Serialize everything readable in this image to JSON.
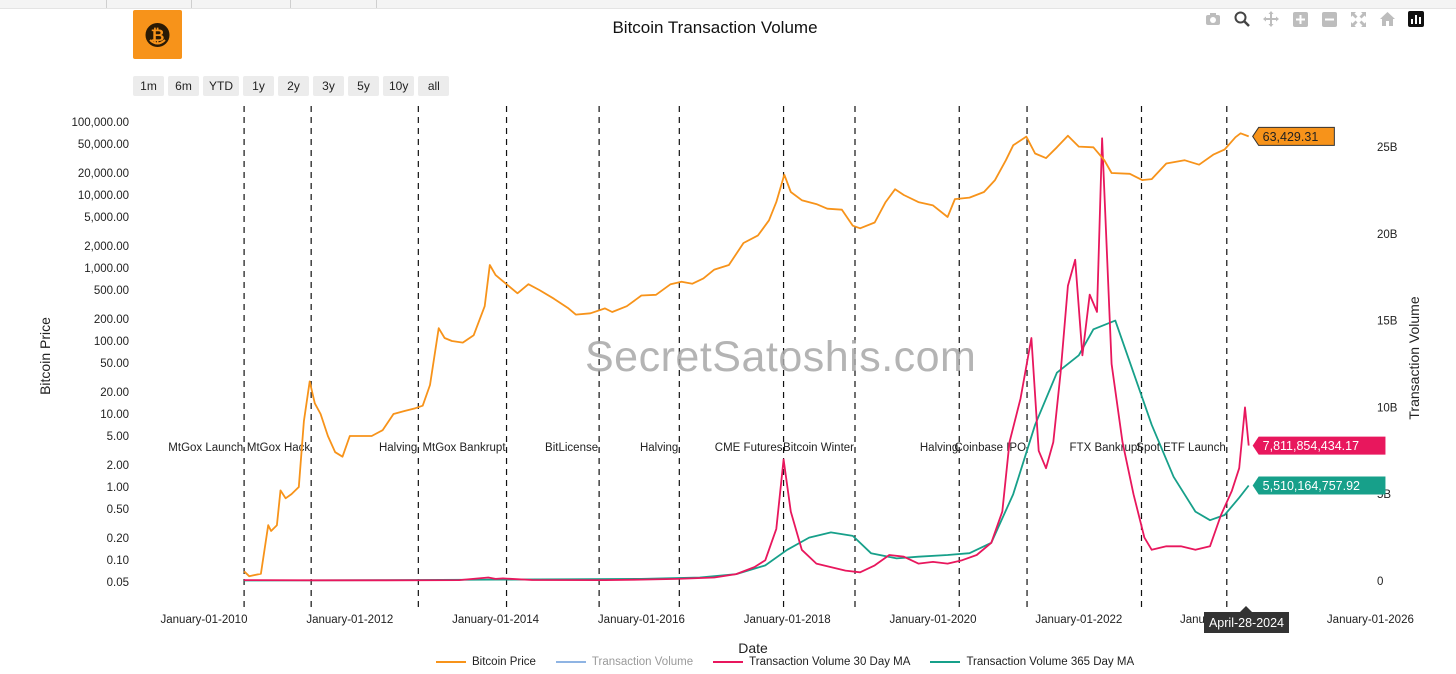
{
  "header": {
    "title": "Bitcoin Transaction Volume"
  },
  "toolbar": {
    "icons": [
      "camera-icon",
      "zoom-icon",
      "pan-icon",
      "zoom-in-icon",
      "zoom-out-icon",
      "autoscale-icon",
      "home-icon",
      "bar-chart-icon"
    ]
  },
  "range_selector": {
    "buttons": [
      "1m",
      "6m",
      "YTD",
      "1y",
      "2y",
      "3y",
      "5y",
      "10y",
      "all"
    ]
  },
  "watermark": "SecretSatoshis.com",
  "legend": {
    "items": [
      {
        "label": "Bitcoin Price",
        "color": "#F7931A"
      },
      {
        "label": "Transaction Volume",
        "color": "#8fb4e3"
      },
      {
        "label": "Transaction Volume 30 Day MA",
        "color": "#E8175D"
      },
      {
        "label": "Transaction Volume 365 Day MA",
        "color": "#17A08A"
      }
    ]
  },
  "chart_data": {
    "type": "line",
    "title": "Bitcoin Transaction Volume",
    "xlabel": "Date",
    "ylabel_left": "Bitcoin Price",
    "ylabel_right": "Transaction Volume",
    "x_ticks": [
      "January-01-2010",
      "January-01-2012",
      "January-01-2014",
      "January-01-2016",
      "January-01-2018",
      "January-01-2020",
      "January-01-2022",
      "January-01-2026"
    ],
    "x_tick_years": [
      2010,
      2012,
      2014,
      2016,
      2018,
      2020,
      2022,
      2026
    ],
    "x_tick_partial": "Janu",
    "y_left_scale": "log",
    "y_left_ticks": [
      "100,000.00",
      "50,000.00",
      "20,000.00",
      "10,000.00",
      "5,000.00",
      "2,000.00",
      "1,000.00",
      "500.00",
      "200.00",
      "100.00",
      "50.00",
      "20.00",
      "10.00",
      "5.00",
      "2.00",
      "1.00",
      "0.50",
      "0.20",
      "0.10",
      "0.05"
    ],
    "y_left_tick_values": [
      100000,
      50000,
      20000,
      10000,
      5000,
      2000,
      1000,
      500,
      200,
      100,
      50,
      20,
      10,
      5,
      2,
      1,
      0.5,
      0.2,
      0.1,
      0.05
    ],
    "y_right_ticks": [
      "25B",
      "20B",
      "15B",
      "10B",
      "5B",
      "0"
    ],
    "y_right_tick_values": [
      25,
      20,
      15,
      10,
      5,
      0
    ],
    "events": [
      {
        "label": "MtGox Launch",
        "year": 2010.55
      },
      {
        "label": "MtGox Hack",
        "year": 2011.47
      },
      {
        "label": "Halving",
        "year": 2012.94
      },
      {
        "label": "MtGox Bankrupt",
        "year": 2014.15
      },
      {
        "label": "BitLicense",
        "year": 2015.42
      },
      {
        "label": "Halving",
        "year": 2016.52
      },
      {
        "label": "CME Futures",
        "year": 2017.95
      },
      {
        "label": "Bitcoin Winter",
        "year": 2018.93
      },
      {
        "label": "Halving",
        "year": 2020.36
      },
      {
        "label": "Coinbase IPO",
        "year": 2021.29
      },
      {
        "label": "FTX Bankrupt",
        "year": 2022.86
      },
      {
        "label": "Spot ETF Launch",
        "year": 2024.03
      }
    ],
    "hover_date": "April-28-2024",
    "grid": false,
    "legend_position": "bottom",
    "series": [
      {
        "name": "Bitcoin Price",
        "axis": "left",
        "color": "#F7931A",
        "last_label": "63,429.31",
        "points": [
          [
            2010.55,
            0.07
          ],
          [
            2010.62,
            0.06
          ],
          [
            2010.78,
            0.065
          ],
          [
            2010.88,
            0.3
          ],
          [
            2010.92,
            0.25
          ],
          [
            2011.0,
            0.3
          ],
          [
            2011.05,
            0.9
          ],
          [
            2011.12,
            0.7
          ],
          [
            2011.2,
            0.8
          ],
          [
            2011.3,
            1.0
          ],
          [
            2011.37,
            8
          ],
          [
            2011.45,
            28
          ],
          [
            2011.52,
            14
          ],
          [
            2011.6,
            10
          ],
          [
            2011.7,
            5
          ],
          [
            2011.8,
            3
          ],
          [
            2011.9,
            2.6
          ],
          [
            2012.0,
            5
          ],
          [
            2012.15,
            5
          ],
          [
            2012.3,
            5
          ],
          [
            2012.45,
            6
          ],
          [
            2012.6,
            10
          ],
          [
            2012.75,
            11
          ],
          [
            2012.9,
            12
          ],
          [
            2013.0,
            13
          ],
          [
            2013.1,
            25
          ],
          [
            2013.22,
            150
          ],
          [
            2013.3,
            110
          ],
          [
            2013.4,
            100
          ],
          [
            2013.55,
            95
          ],
          [
            2013.7,
            120
          ],
          [
            2013.85,
            300
          ],
          [
            2013.92,
            1100
          ],
          [
            2014.0,
            800
          ],
          [
            2014.15,
            600
          ],
          [
            2014.3,
            450
          ],
          [
            2014.45,
            600
          ],
          [
            2014.6,
            500
          ],
          [
            2014.8,
            380
          ],
          [
            2015.0,
            280
          ],
          [
            2015.1,
            230
          ],
          [
            2015.3,
            240
          ],
          [
            2015.5,
            280
          ],
          [
            2015.6,
            250
          ],
          [
            2015.8,
            300
          ],
          [
            2016.0,
            420
          ],
          [
            2016.2,
            430
          ],
          [
            2016.4,
            600
          ],
          [
            2016.55,
            650
          ],
          [
            2016.7,
            610
          ],
          [
            2016.85,
            720
          ],
          [
            2017.0,
            950
          ],
          [
            2017.2,
            1100
          ],
          [
            2017.4,
            2200
          ],
          [
            2017.6,
            2800
          ],
          [
            2017.75,
            4500
          ],
          [
            2017.85,
            8000
          ],
          [
            2017.96,
            19000
          ],
          [
            2018.05,
            11000
          ],
          [
            2018.2,
            8500
          ],
          [
            2018.4,
            7500
          ],
          [
            2018.55,
            6500
          ],
          [
            2018.75,
            6300
          ],
          [
            2018.9,
            3800
          ],
          [
            2019.0,
            3500
          ],
          [
            2019.2,
            4200
          ],
          [
            2019.35,
            8000
          ],
          [
            2019.48,
            12000
          ],
          [
            2019.6,
            10000
          ],
          [
            2019.8,
            8000
          ],
          [
            2020.0,
            7200
          ],
          [
            2020.2,
            5000
          ],
          [
            2020.3,
            8800
          ],
          [
            2020.5,
            9200
          ],
          [
            2020.7,
            11000
          ],
          [
            2020.85,
            16000
          ],
          [
            2021.0,
            30000
          ],
          [
            2021.1,
            48000
          ],
          [
            2021.28,
            63000
          ],
          [
            2021.4,
            37000
          ],
          [
            2021.55,
            32000
          ],
          [
            2021.7,
            45000
          ],
          [
            2021.85,
            65000
          ],
          [
            2022.0,
            46000
          ],
          [
            2022.2,
            45000
          ],
          [
            2022.35,
            30000
          ],
          [
            2022.45,
            20000
          ],
          [
            2022.7,
            19500
          ],
          [
            2022.87,
            16000
          ],
          [
            2023.0,
            16500
          ],
          [
            2023.2,
            27000
          ],
          [
            2023.45,
            30000
          ],
          [
            2023.65,
            26000
          ],
          [
            2023.85,
            36000
          ],
          [
            2024.0,
            42000
          ],
          [
            2024.15,
            62000
          ],
          [
            2024.22,
            70000
          ],
          [
            2024.33,
            63429
          ]
        ]
      },
      {
        "name": "Transaction Volume 30 Day MA",
        "axis": "right",
        "color": "#E8175D",
        "last_label": "7,811,854,434.17",
        "points": [
          [
            2010.55,
            0.05
          ],
          [
            2011.5,
            0.04
          ],
          [
            2012.5,
            0.04
          ],
          [
            2013.5,
            0.05
          ],
          [
            2013.9,
            0.2
          ],
          [
            2014.0,
            0.12
          ],
          [
            2014.1,
            0.15
          ],
          [
            2014.5,
            0.06
          ],
          [
            2015.5,
            0.05
          ],
          [
            2016.0,
            0.08
          ],
          [
            2016.5,
            0.12
          ],
          [
            2017.0,
            0.2
          ],
          [
            2017.3,
            0.4
          ],
          [
            2017.55,
            0.8
          ],
          [
            2017.7,
            1.2
          ],
          [
            2017.85,
            3.0
          ],
          [
            2017.95,
            7.0
          ],
          [
            2018.05,
            4.0
          ],
          [
            2018.2,
            1.8
          ],
          [
            2018.4,
            1.0
          ],
          [
            2018.6,
            0.8
          ],
          [
            2018.8,
            0.6
          ],
          [
            2019.0,
            0.5
          ],
          [
            2019.2,
            0.9
          ],
          [
            2019.4,
            1.5
          ],
          [
            2019.6,
            1.4
          ],
          [
            2019.8,
            1.0
          ],
          [
            2020.0,
            1.1
          ],
          [
            2020.2,
            1.0
          ],
          [
            2020.4,
            1.2
          ],
          [
            2020.6,
            1.5
          ],
          [
            2020.8,
            2.2
          ],
          [
            2020.95,
            4.0
          ],
          [
            2021.05,
            8.0
          ],
          [
            2021.2,
            10.5
          ],
          [
            2021.35,
            14.0
          ],
          [
            2021.45,
            7.5
          ],
          [
            2021.55,
            6.5
          ],
          [
            2021.65,
            8.0
          ],
          [
            2021.75,
            12.0
          ],
          [
            2021.85,
            17.0
          ],
          [
            2021.95,
            18.5
          ],
          [
            2022.05,
            13.0
          ],
          [
            2022.15,
            16.5
          ],
          [
            2022.25,
            15.5
          ],
          [
            2022.32,
            25.5
          ],
          [
            2022.45,
            12.5
          ],
          [
            2022.6,
            8.0
          ],
          [
            2022.75,
            5.0
          ],
          [
            2022.9,
            2.5
          ],
          [
            2023.0,
            1.8
          ],
          [
            2023.2,
            2.0
          ],
          [
            2023.4,
            2.0
          ],
          [
            2023.6,
            1.8
          ],
          [
            2023.8,
            2.0
          ],
          [
            2023.95,
            3.8
          ],
          [
            2024.1,
            5.2
          ],
          [
            2024.2,
            6.5
          ],
          [
            2024.28,
            10.0
          ],
          [
            2024.33,
            7.8
          ]
        ]
      },
      {
        "name": "Transaction Volume 365 Day MA",
        "axis": "right",
        "color": "#17A08A",
        "last_label": "5,510,164,757.92",
        "points": [
          [
            2010.55,
            0.03
          ],
          [
            2012.5,
            0.05
          ],
          [
            2014.0,
            0.08
          ],
          [
            2015.0,
            0.1
          ],
          [
            2016.0,
            0.12
          ],
          [
            2016.8,
            0.2
          ],
          [
            2017.3,
            0.4
          ],
          [
            2017.7,
            0.9
          ],
          [
            2018.0,
            1.8
          ],
          [
            2018.3,
            2.5
          ],
          [
            2018.6,
            2.8
          ],
          [
            2018.9,
            2.6
          ],
          [
            2019.15,
            1.6
          ],
          [
            2019.5,
            1.3
          ],
          [
            2019.8,
            1.4
          ],
          [
            2020.2,
            1.5
          ],
          [
            2020.5,
            1.6
          ],
          [
            2020.8,
            2.2
          ],
          [
            2021.1,
            5.0
          ],
          [
            2021.4,
            9.0
          ],
          [
            2021.7,
            12.0
          ],
          [
            2022.0,
            13.0
          ],
          [
            2022.2,
            14.5
          ],
          [
            2022.5,
            15.0
          ],
          [
            2022.75,
            12.0
          ],
          [
            2023.0,
            9.0
          ],
          [
            2023.3,
            6.0
          ],
          [
            2023.6,
            4.0
          ],
          [
            2023.8,
            3.5
          ],
          [
            2024.0,
            3.8
          ],
          [
            2024.2,
            4.8
          ],
          [
            2024.33,
            5.5
          ]
        ]
      },
      {
        "name": "Transaction Volume",
        "axis": "right",
        "color": "#8fb4e3",
        "visible": false,
        "points": []
      }
    ]
  }
}
